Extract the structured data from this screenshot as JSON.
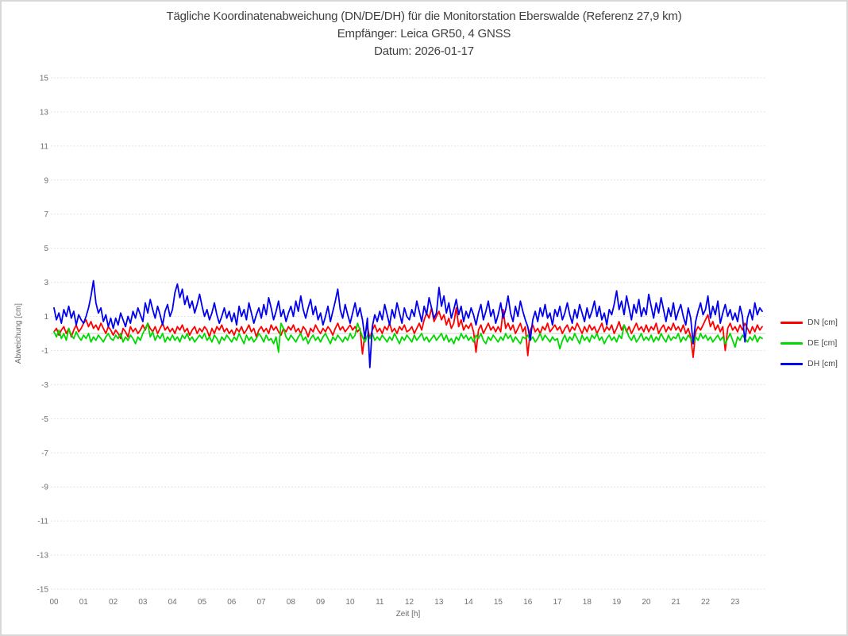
{
  "window": {
    "background": "#ffffff",
    "border_color": "#d8d8d8"
  },
  "chart_data": {
    "type": "line",
    "title": "Tägliche Koordinatenabweichung (DN/DE/DH) für die Monitorstation Eberswalde (Referenz 27,9 km)",
    "subtitle1": "Empfänger: Leica GR50, 4 GNSS",
    "subtitle2": "Datum: 2026-01-17",
    "xlabel": "Zeit [h]",
    "ylabel": "Abweichung [cm]",
    "xlim": [
      0,
      24
    ],
    "ylim": [
      -15,
      15
    ],
    "grid": "horizontal-dotted",
    "zero_line": true,
    "legend_position": "right",
    "sample_interval_minutes": 5,
    "y_ticks": [
      15,
      13,
      11,
      9,
      7,
      5,
      3,
      1,
      -1,
      -3,
      -5,
      -7,
      -9,
      -11,
      -13,
      -15
    ],
    "x_ticks": [
      "00",
      "01",
      "02",
      "03",
      "04",
      "05",
      "06",
      "07",
      "08",
      "09",
      "10",
      "11",
      "12",
      "13",
      "14",
      "15",
      "16",
      "17",
      "18",
      "19",
      "20",
      "21",
      "22",
      "23"
    ],
    "series": [
      {
        "name": "DN [cm]",
        "color": "#ff0000",
        "values": [
          0.1,
          0.3,
          -0.1,
          0.2,
          0.4,
          0.0,
          0.3,
          -0.2,
          0.2,
          0.5,
          0.1,
          0.3,
          0.6,
          0.8,
          0.4,
          0.7,
          0.3,
          0.5,
          0.2,
          0.6,
          0.3,
          0.0,
          0.4,
          0.2,
          -0.1,
          0.2,
          0.0,
          -0.3,
          0.3,
          0.1,
          -0.2,
          0.4,
          0.1,
          0.3,
          0.0,
          0.2,
          0.5,
          0.2,
          0.6,
          0.3,
          0.1,
          0.4,
          0.0,
          0.3,
          0.6,
          0.2,
          0.4,
          0.1,
          0.3,
          0.0,
          0.4,
          0.2,
          0.5,
          0.1,
          0.3,
          -0.1,
          0.2,
          0.4,
          0.0,
          0.3,
          0.1,
          0.4,
          0.2,
          -0.2,
          0.3,
          0.0,
          0.4,
          0.2,
          0.5,
          0.1,
          0.3,
          0.0,
          0.2,
          -0.1,
          0.3,
          0.1,
          0.4,
          0.0,
          0.2,
          0.5,
          0.1,
          0.3,
          -0.2,
          0.2,
          0.4,
          0.1,
          0.3,
          0.0,
          0.5,
          0.2,
          0.4,
          0.1,
          -0.1,
          0.3,
          0.1,
          0.4,
          0.2,
          0.5,
          0.1,
          0.3,
          0.0,
          0.4,
          0.2,
          -0.2,
          0.3,
          0.1,
          0.5,
          0.2,
          0.0,
          0.3,
          0.1,
          0.4,
          0.2,
          -0.1,
          0.3,
          0.6,
          0.2,
          0.4,
          0.1,
          0.3,
          0.5,
          0.2,
          0.4,
          0.1,
          0.3,
          -1.2,
          0.0,
          0.4,
          -0.3,
          0.2,
          0.5,
          0.1,
          0.3,
          0.0,
          0.4,
          0.2,
          0.6,
          0.1,
          0.3,
          0.0,
          0.4,
          0.2,
          0.5,
          0.1,
          0.2,
          0.4,
          0.0,
          0.3,
          0.6,
          0.2,
          0.8,
          1.2,
          0.9,
          1.5,
          0.7,
          1.0,
          1.3,
          0.8,
          1.1,
          0.5,
          0.9,
          0.3,
          0.6,
          1.5,
          0.4,
          0.8,
          0.2,
          0.5,
          0.3,
          0.6,
          0.1,
          -1.1,
          0.2,
          0.5,
          0.0,
          0.3,
          0.6,
          0.2,
          0.4,
          0.1,
          0.4,
          0.1,
          1.4,
          0.3,
          0.6,
          0.2,
          0.5,
          0.0,
          0.3,
          0.6,
          0.1,
          0.4,
          -1.3,
          0.2,
          0.5,
          0.1,
          0.3,
          0.0,
          0.4,
          0.2,
          0.6,
          0.1,
          0.3,
          0.5,
          0.2,
          0.4,
          0.0,
          0.3,
          0.5,
          0.1,
          0.4,
          0.2,
          0.6,
          0.3,
          0.0,
          0.4,
          0.1,
          0.5,
          0.2,
          0.4,
          0.0,
          0.3,
          0.6,
          0.1,
          0.4,
          0.2,
          0.5,
          0.0,
          0.3,
          0.7,
          0.2,
          0.5,
          0.1,
          0.4,
          0.0,
          0.3,
          0.6,
          0.2,
          0.4,
          0.1,
          0.5,
          0.1,
          0.4,
          0.2,
          0.6,
          0.0,
          0.3,
          0.5,
          0.1,
          0.4,
          0.2,
          0.6,
          0.2,
          0.4,
          0.1,
          0.5,
          0.0,
          0.3,
          -0.2,
          -1.4,
          0.1,
          0.4,
          0.2,
          0.5,
          0.8,
          1.1,
          0.4,
          0.7,
          0.2,
          0.5,
          0.1,
          0.4,
          -1.0,
          0.3,
          0.6,
          0.2,
          0.4,
          0.1,
          0.5,
          0.2,
          0.6,
          0.3,
          0.0,
          0.4,
          0.1,
          0.5,
          0.2,
          0.4
        ]
      },
      {
        "name": "DE [cm]",
        "color": "#00d900",
        "values": [
          0.1,
          -0.2,
          0.2,
          -0.3,
          0.0,
          -0.4,
          0.3,
          -0.1,
          -0.3,
          0.1,
          -0.2,
          -0.4,
          -0.1,
          -0.3,
          0.0,
          -0.5,
          -0.2,
          -0.4,
          -0.1,
          -0.3,
          -0.5,
          -0.2,
          0.0,
          -0.3,
          -0.4,
          -0.1,
          -0.3,
          0.0,
          -0.5,
          -0.2,
          -0.4,
          -0.1,
          -0.3,
          -0.6,
          -0.2,
          -0.4,
          0.0,
          0.3,
          0.6,
          -0.2,
          0.1,
          -0.4,
          -0.1,
          -0.3,
          0.0,
          -0.5,
          -0.2,
          -0.4,
          -0.1,
          -0.4,
          -0.2,
          -0.5,
          -0.1,
          -0.3,
          0.0,
          -0.4,
          -0.2,
          -0.5,
          -0.3,
          -0.1,
          -0.3,
          0.0,
          -0.4,
          -0.2,
          -0.5,
          -0.1,
          -0.3,
          -0.6,
          -0.2,
          -0.4,
          -0.1,
          -0.3,
          -0.5,
          -0.2,
          -0.4,
          0.0,
          -0.3,
          -0.6,
          -0.1,
          -0.4,
          -0.2,
          -0.5,
          -0.3,
          0.0,
          -0.2,
          -0.5,
          -0.1,
          -0.4,
          -0.3,
          -0.6,
          -0.2,
          -1.1,
          0.6,
          0.3,
          -0.2,
          -0.4,
          -0.1,
          -0.3,
          -0.5,
          -0.2,
          0.0,
          -0.4,
          -0.2,
          -0.6,
          -0.3,
          -0.1,
          -0.4,
          -0.2,
          -0.5,
          -0.2,
          0.0,
          -0.3,
          -0.6,
          -0.2,
          -0.4,
          -0.1,
          -0.3,
          -0.5,
          -0.2,
          -0.4,
          0.0,
          -0.3,
          -0.1,
          0.6,
          0.2,
          -0.2,
          -0.5,
          -0.1,
          -0.3,
          0.0,
          -0.4,
          -0.2,
          -0.4,
          -0.1,
          -0.3,
          -0.5,
          -0.2,
          -0.4,
          0.0,
          -0.3,
          -0.6,
          -0.2,
          -0.4,
          -0.1,
          -0.3,
          -0.5,
          -0.1,
          -0.4,
          -0.2,
          0.0,
          -0.4,
          -0.2,
          -0.5,
          -0.3,
          -0.1,
          -0.4,
          -0.2,
          0.0,
          -0.4,
          -0.1,
          -0.5,
          -0.3,
          -0.6,
          -0.2,
          -0.4,
          0.0,
          -0.3,
          -0.1,
          -0.4,
          -0.2,
          -0.5,
          -0.1,
          -0.3,
          0.0,
          -0.4,
          -0.6,
          -0.2,
          -0.4,
          -0.1,
          -0.3,
          -0.5,
          -0.2,
          -0.4,
          0.0,
          -0.3,
          -0.1,
          -0.5,
          -0.2,
          -0.4,
          -0.6,
          -0.2,
          -0.3,
          -0.1,
          -0.4,
          -0.2,
          -0.5,
          -0.3,
          0.0,
          -0.4,
          -0.1,
          -0.3,
          -0.5,
          -0.2,
          -0.4,
          -0.3,
          -0.9,
          -0.4,
          -0.1,
          -0.5,
          -0.2,
          -0.4,
          0.0,
          -0.3,
          -0.6,
          -0.1,
          -0.4,
          -0.2,
          -0.5,
          -0.1,
          -0.3,
          0.0,
          -0.4,
          -0.2,
          -0.6,
          -0.3,
          -0.1,
          -0.4,
          -0.2,
          -0.5,
          -0.1,
          -0.3,
          0.5,
          0.2,
          -0.2,
          -0.4,
          -0.1,
          -0.5,
          -0.3,
          0.0,
          -0.4,
          -0.2,
          -0.4,
          -0.1,
          -0.5,
          -0.2,
          -0.4,
          0.0,
          -0.3,
          -0.5,
          -0.1,
          -0.4,
          -0.2,
          -0.3,
          0.0,
          -0.5,
          -0.2,
          -0.4,
          -0.1,
          -0.3,
          -0.6,
          -0.2,
          -0.4,
          0.0,
          -0.3,
          -0.1,
          -0.4,
          -0.2,
          -0.5,
          -0.3,
          -0.1,
          -0.4,
          -0.2,
          -0.6,
          -0.3,
          0.0,
          -0.4,
          -0.8,
          -0.2,
          -0.4,
          -0.1,
          -0.3,
          -0.5,
          -0.2,
          -0.4,
          -0.1,
          -0.5,
          -0.2,
          -0.3
        ]
      },
      {
        "name": "DH [cm]",
        "color": "#0000ee",
        "values": [
          1.5,
          0.8,
          1.2,
          0.6,
          1.4,
          1.0,
          1.6,
          0.9,
          1.3,
          0.5,
          1.1,
          0.8,
          0.6,
          1.0,
          1.5,
          2.2,
          3.1,
          1.8,
          1.2,
          1.5,
          0.7,
          1.1,
          0.4,
          0.9,
          0.3,
          0.9,
          0.5,
          1.2,
          0.8,
          0.4,
          1.0,
          0.6,
          1.3,
          0.9,
          1.5,
          1.1,
          0.7,
          1.8,
          1.2,
          2.0,
          1.4,
          0.9,
          1.6,
          1.1,
          0.5,
          1.3,
          1.7,
          1.0,
          1.4,
          2.4,
          2.9,
          2.1,
          2.6,
          1.7,
          2.2,
          1.5,
          1.9,
          1.2,
          1.7,
          2.3,
          1.6,
          1.0,
          1.4,
          0.8,
          1.2,
          1.8,
          1.1,
          0.6,
          1.0,
          1.5,
          0.9,
          1.3,
          0.7,
          1.2,
          0.5,
          1.6,
          1.0,
          1.4,
          0.8,
          1.8,
          1.2,
          0.6,
          1.1,
          1.5,
          0.9,
          1.7,
          1.1,
          2.1,
          1.5,
          0.8,
          1.3,
          1.9,
          1.0,
          1.4,
          0.7,
          1.2,
          1.6,
          1.0,
          1.9,
          1.3,
          2.2,
          1.4,
          0.9,
          1.5,
          2.0,
          1.1,
          1.6,
          0.8,
          1.2,
          0.5,
          1.0,
          1.6,
          0.7,
          1.3,
          1.9,
          2.6,
          1.4,
          0.9,
          1.7,
          1.1,
          0.6,
          1.2,
          1.8,
          1.0,
          1.5,
          0.8,
          -0.3,
          0.9,
          -2.0,
          0.4,
          1.1,
          0.7,
          1.3,
          0.8,
          1.7,
          1.1,
          0.5,
          1.4,
          0.9,
          1.8,
          1.2,
          0.6,
          1.5,
          1.0,
          0.8,
          1.4,
          1.0,
          1.9,
          1.3,
          0.7,
          1.6,
          1.1,
          2.1,
          1.5,
          0.9,
          1.2,
          2.7,
          1.6,
          2.2,
          1.2,
          1.8,
          0.9,
          1.4,
          2.0,
          1.1,
          1.6,
          0.7,
          1.3,
          0.9,
          1.5,
          1.1,
          0.5,
          1.2,
          1.7,
          0.8,
          1.3,
          1.9,
          1.0,
          1.4,
          0.6,
          1.1,
          1.8,
          0.9,
          1.4,
          2.2,
          1.2,
          0.7,
          1.6,
          1.0,
          1.9,
          1.3,
          0.8,
          0.4,
          -0.4,
          0.8,
          1.3,
          0.7,
          1.5,
          1.0,
          1.7,
          0.9,
          1.2,
          0.5,
          1.4,
          1.0,
          1.6,
          0.8,
          1.2,
          1.8,
          1.1,
          0.6,
          1.4,
          0.9,
          1.7,
          1.2,
          0.7,
          1.5,
          0.9,
          1.3,
          1.9,
          1.0,
          1.6,
          0.8,
          1.2,
          0.5,
          1.4,
          1.1,
          1.7,
          2.5,
          1.4,
          1.9,
          1.1,
          2.2,
          1.5,
          0.8,
          1.7,
          1.2,
          2.0,
          1.0,
          1.5,
          1.1,
          2.3,
          1.6,
          0.9,
          1.8,
          1.2,
          2.1,
          1.4,
          0.7,
          1.5,
          1.0,
          1.8,
          0.8,
          1.3,
          1.7,
          1.0,
          0.5,
          1.5,
          0.9,
          -0.6,
          0.7,
          1.3,
          1.8,
          1.1,
          1.4,
          2.2,
          0.9,
          1.6,
          1.1,
          1.9,
          0.6,
          1.2,
          1.7,
          1.0,
          1.4,
          0.8,
          1.2,
          0.7,
          1.6,
          1.0,
          -0.5,
          0.9,
          1.4,
          0.8,
          1.8,
          1.1,
          1.5,
          1.3
        ]
      }
    ]
  }
}
